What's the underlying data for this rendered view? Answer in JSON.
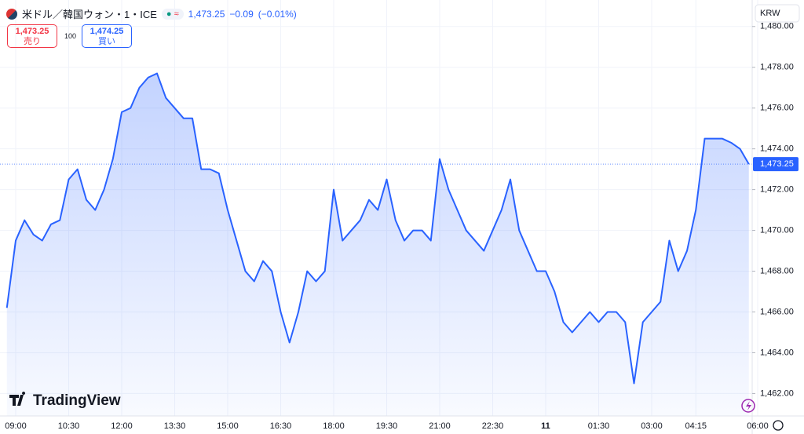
{
  "header": {
    "title": "米ドル／韓国ウォン・1・ICE",
    "price": "1,473.25",
    "change": "−0.09",
    "change_percent": "(−0.01%)",
    "sell_price": "1,473.25",
    "sell_label": "売り",
    "spread": "100",
    "buy_price": "1,474.25",
    "buy_label": "買い"
  },
  "currency": "KRW",
  "branding": "TradingView",
  "chart_data": {
    "type": "area",
    "color": "#2962ff",
    "grid": true,
    "categories": [
      "08:45",
      "09:00",
      "09:15",
      "09:30",
      "09:45",
      "10:00",
      "10:15",
      "10:30",
      "10:45",
      "11:00",
      "11:15",
      "11:30",
      "11:45",
      "12:00",
      "12:15",
      "12:30",
      "12:45",
      "13:00",
      "13:15",
      "13:30",
      "13:45",
      "14:00",
      "14:15",
      "14:30",
      "14:45",
      "15:00",
      "15:15",
      "15:30",
      "15:45",
      "16:00",
      "16:15",
      "16:30",
      "16:45",
      "17:00",
      "17:15",
      "17:30",
      "17:45",
      "18:00",
      "18:15",
      "18:30",
      "18:45",
      "19:00",
      "19:15",
      "19:30",
      "19:45",
      "20:00",
      "20:15",
      "20:30",
      "20:45",
      "21:00",
      "21:15",
      "21:30",
      "21:45",
      "22:00",
      "22:15",
      "22:30",
      "22:45",
      "23:00",
      "23:15",
      "23:30",
      "23:45",
      "00:00",
      "00:15",
      "00:30",
      "00:45",
      "01:00",
      "01:15",
      "01:30",
      "01:45",
      "02:00",
      "02:15",
      "02:30",
      "02:45",
      "03:00",
      "03:15",
      "03:30",
      "03:45",
      "04:00",
      "04:15",
      "04:30",
      "04:45",
      "05:00",
      "05:15",
      "05:30",
      "05:45"
    ],
    "values": [
      1466.2,
      1469.5,
      1470.5,
      1469.8,
      1469.5,
      1470.3,
      1470.5,
      1472.5,
      1473,
      1471.5,
      1471,
      1472,
      1473.5,
      1475.8,
      1476,
      1477,
      1477.5,
      1477.7,
      1476.5,
      1476,
      1475.5,
      1475.5,
      1473,
      1473,
      1472.8,
      1471,
      1469.5,
      1468,
      1467.5,
      1468.5,
      1468,
      1466,
      1464.5,
      1466,
      1468,
      1467.5,
      1468,
      1472,
      1469.5,
      1470,
      1470.5,
      1471.5,
      1471,
      1472.5,
      1470.5,
      1469.5,
      1470,
      1470,
      1469.5,
      1473.5,
      1472,
      1471,
      1470,
      1469.5,
      1469,
      1470,
      1471,
      1472.5,
      1470,
      1469,
      1468,
      1468,
      1467,
      1465.5,
      1465,
      1465.5,
      1466,
      1465.5,
      1466,
      1466,
      1465.5,
      1462.5,
      1465.5,
      1466,
      1466.5,
      1469.5,
      1468,
      1469,
      1471,
      1474.5,
      1474.5,
      1474.5,
      1474.3,
      1474,
      1473.25
    ],
    "last_label": "1,473.25",
    "xticks": [
      "09:00",
      "10:30",
      "12:00",
      "13:30",
      "15:00",
      "16:30",
      "18:00",
      "19:30",
      "21:00",
      "22:30",
      {
        "value": "00:00",
        "label": "11"
      },
      "01:30",
      "03:00",
      "04:15",
      "06:00"
    ],
    "ylim": [
      1460.9,
      1481.3
    ],
    "yticks": [
      {
        "value": 1462,
        "label": "1,462.00"
      },
      {
        "value": 1464,
        "label": "1,464.00"
      },
      {
        "value": 1466,
        "label": "1,466.00"
      },
      {
        "value": 1468,
        "label": "1,468.00"
      },
      {
        "value": 1470,
        "label": "1,470.00"
      },
      {
        "value": 1472,
        "label": "1,472.00"
      },
      {
        "value": 1474,
        "label": "1,474.00"
      },
      {
        "value": 1476,
        "label": "1,476.00"
      },
      {
        "value": 1478,
        "label": "1,478.00"
      },
      {
        "value": 1480,
        "label": "1,480.00"
      }
    ]
  }
}
